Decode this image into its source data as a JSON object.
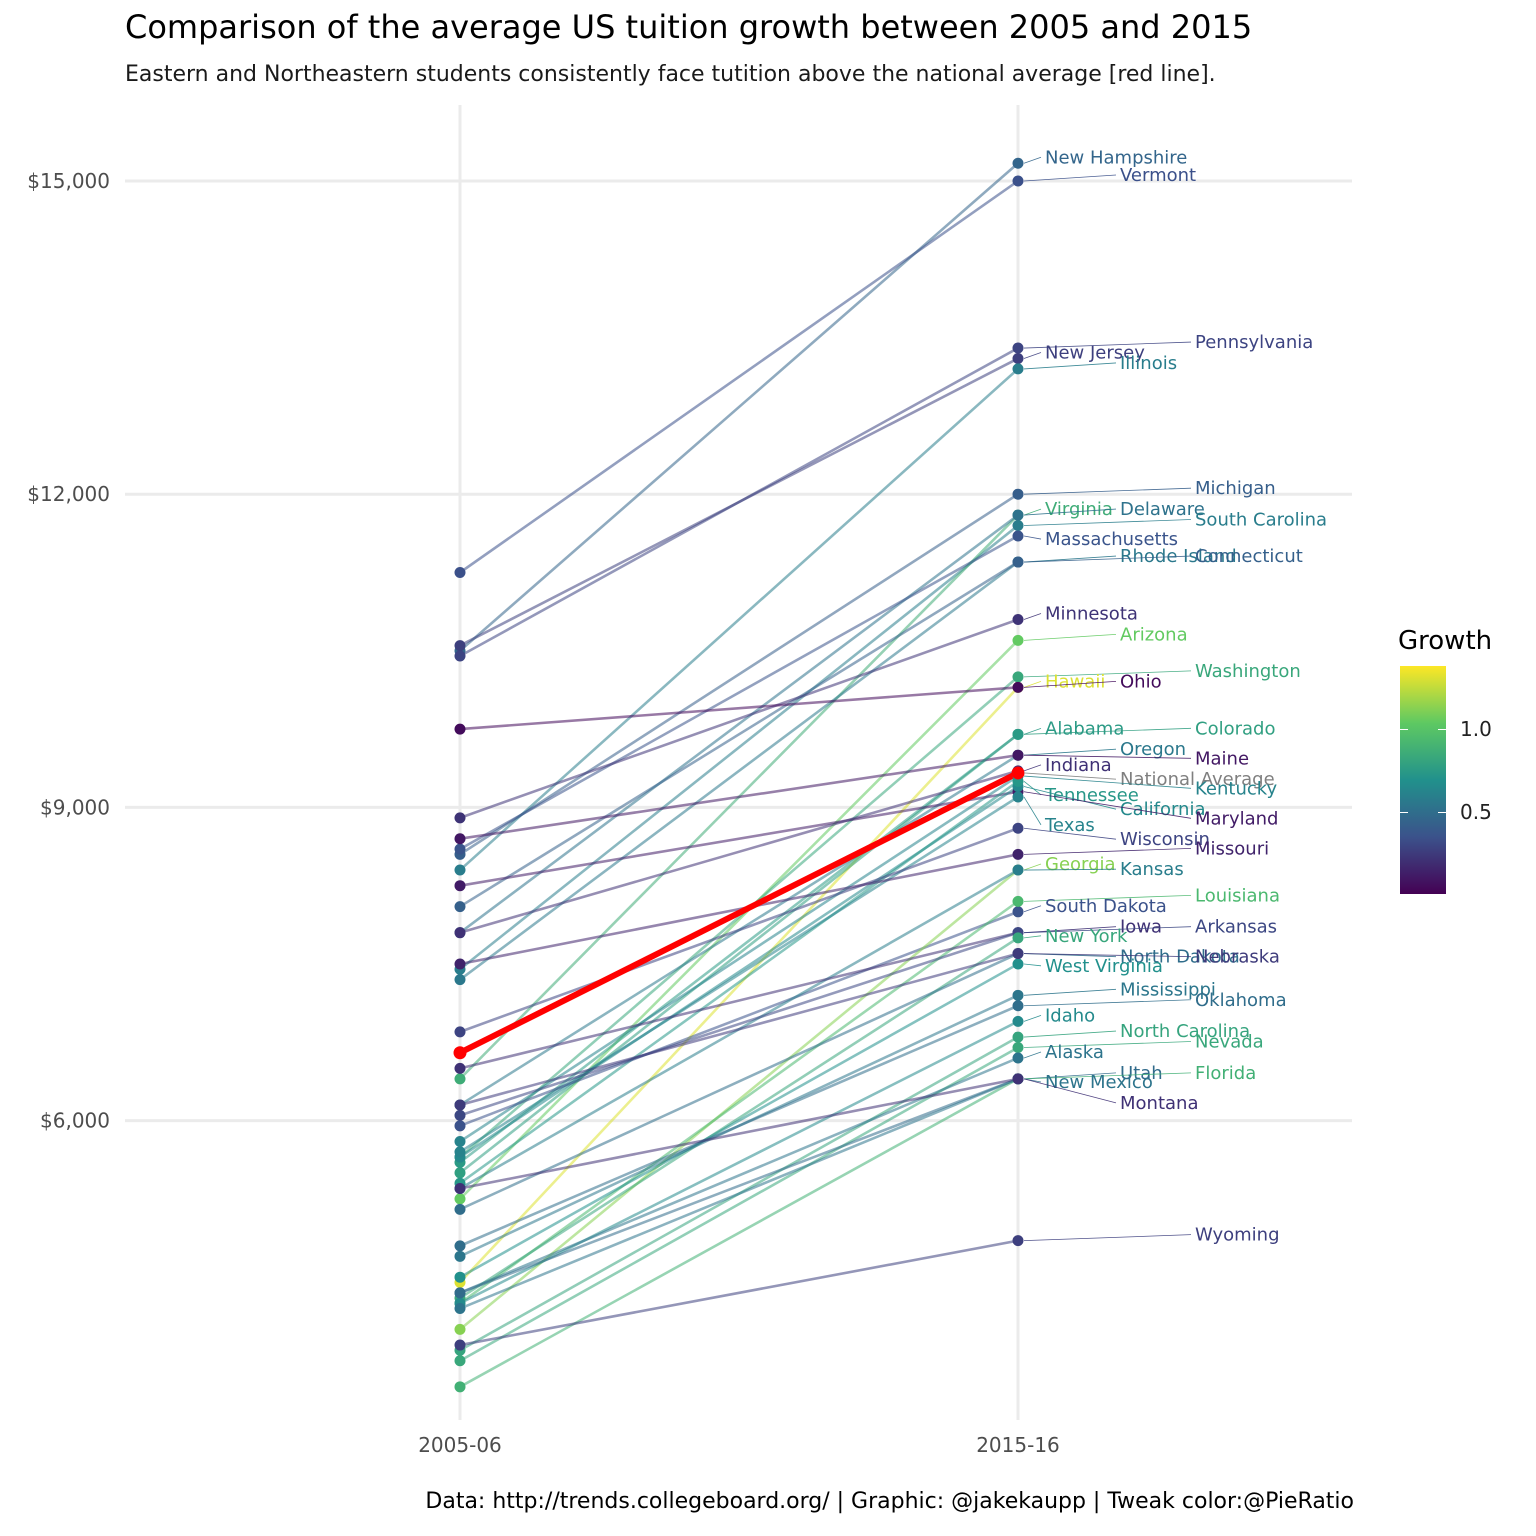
{
  "title": "Comparison of the average US tuition growth between 2005 and 2015",
  "subtitle": "Eastern and Northeastern students consistently face tutition above the national average [red line].",
  "caption": "Data: http://trends.collegeboard.org/ | Graphic: @jakekaupp | Tweak color:@PieRatio",
  "legend": {
    "title": "Growth",
    "ticks": [
      "0.5",
      "1.0"
    ]
  },
  "chart_data": {
    "type": "line",
    "x": [
      "2005-06",
      "2015-16"
    ],
    "y_ticks": [
      "$6,000",
      "$9,000",
      "$12,000",
      "$15,000"
    ],
    "ylim": [
      3500,
      15700
    ],
    "grid": true,
    "colorscale": "viridis",
    "highlight": {
      "name": "National Average",
      "color": "#ff0000",
      "values": [
        6650,
        9330
      ]
    },
    "series": [
      {
        "name": "New Hampshire",
        "values": [
          10500,
          15170
        ],
        "growth": 0.44
      },
      {
        "name": "Vermont",
        "values": [
          11250,
          15000
        ],
        "growth": 0.33
      },
      {
        "name": "Pennsylvania",
        "values": [
          10450,
          13400
        ],
        "growth": 0.28
      },
      {
        "name": "New Jersey",
        "values": [
          10550,
          13300
        ],
        "growth": 0.26
      },
      {
        "name": "Illinois",
        "values": [
          8400,
          13200
        ],
        "growth": 0.57
      },
      {
        "name": "Michigan",
        "values": [
          8550,
          12000
        ],
        "growth": 0.4
      },
      {
        "name": "South Carolina",
        "values": [
          7450,
          11700
        ],
        "growth": 0.57
      },
      {
        "name": "Virginia",
        "values": [
          6400,
          11800
        ],
        "growth": 0.84
      },
      {
        "name": "Delaware",
        "values": [
          7800,
          11800
        ],
        "growth": 0.51
      },
      {
        "name": "Massachusetts",
        "values": [
          8600,
          11600
        ],
        "growth": 0.35
      },
      {
        "name": "Rhode Island",
        "values": [
          7350,
          11350
        ],
        "growth": 0.54
      },
      {
        "name": "Connecticut",
        "values": [
          8050,
          11350
        ],
        "growth": 0.41
      },
      {
        "name": "Minnesota",
        "values": [
          8900,
          10800
        ],
        "growth": 0.21
      },
      {
        "name": "Arizona",
        "values": [
          5250,
          10600
        ],
        "growth": 1.02
      },
      {
        "name": "Hawaii",
        "values": [
          4450,
          10150
        ],
        "growth": 1.28
      },
      {
        "name": "Washington",
        "values": [
          5650,
          10250
        ],
        "growth": 0.81
      },
      {
        "name": "Oregon",
        "values": [
          6150,
          9500
        ],
        "growth": 0.54
      },
      {
        "name": "Ohio",
        "values": [
          9750,
          10150
        ],
        "growth": 0.04
      },
      {
        "name": "Colorado",
        "values": [
          5500,
          9700
        ],
        "growth": 0.76
      },
      {
        "name": "Maine",
        "values": [
          8700,
          9500
        ],
        "growth": 0.09
      },
      {
        "name": "Alabama",
        "values": [
          5600,
          9700
        ],
        "growth": 0.73
      },
      {
        "name": "Kentucky",
        "values": [
          5800,
          9300
        ],
        "growth": 0.6
      },
      {
        "name": "Maryland",
        "values": [
          8250,
          9150
        ],
        "growth": 0.11
      },
      {
        "name": "California",
        "values": [
          5650,
          9200
        ],
        "growth": 0.63
      },
      {
        "name": "Tennessee",
        "values": [
          5400,
          9250
        ],
        "growth": 0.71
      },
      {
        "name": "Indiana",
        "values": [
          7800,
          9350
        ],
        "growth": 0.2
      },
      {
        "name": "Texas",
        "values": [
          5700,
          9100
        ],
        "growth": 0.6
      },
      {
        "name": "Wisconsin",
        "values": [
          6850,
          8800
        ],
        "growth": 0.28
      },
      {
        "name": "South Dakota",
        "values": [
          5950,
          8000
        ],
        "growth": 0.34
      },
      {
        "name": "Georgia",
        "values": [
          4000,
          8400
        ],
        "growth": 1.1
      },
      {
        "name": "Missouri",
        "values": [
          7500,
          8550
        ],
        "growth": 0.14
      },
      {
        "name": "Kansas",
        "values": [
          5350,
          8400
        ],
        "growth": 0.57
      },
      {
        "name": "Louisiana",
        "values": [
          4250,
          8100
        ],
        "growth": 0.91
      },
      {
        "name": "Iowa",
        "values": [
          6500,
          7800
        ],
        "growth": 0.2
      },
      {
        "name": "Arkansas",
        "values": [
          6050,
          7800
        ],
        "growth": 0.29
      },
      {
        "name": "New York",
        "values": [
          4300,
          7750
        ],
        "growth": 0.8
      },
      {
        "name": "North Dakota",
        "values": [
          5150,
          7600
        ],
        "growth": 0.48
      },
      {
        "name": "West Virginia",
        "values": [
          4500,
          7500
        ],
        "growth": 0.67
      },
      {
        "name": "Nebraska",
        "values": [
          6150,
          7600
        ],
        "growth": 0.24
      },
      {
        "name": "Mississippi",
        "values": [
          4700,
          7200
        ],
        "growth": 0.53
      },
      {
        "name": "Oklahoma",
        "values": [
          4800,
          7100
        ],
        "growth": 0.48
      },
      {
        "name": "Idaho",
        "values": [
          4250,
          6950
        ],
        "growth": 0.64
      },
      {
        "name": "Nevada",
        "values": [
          3700,
          6700
        ],
        "growth": 0.81
      },
      {
        "name": "North Carolina",
        "values": [
          3800,
          6800
        ],
        "growth": 0.79
      },
      {
        "name": "Alaska",
        "values": [
          4350,
          6600
        ],
        "growth": 0.52
      },
      {
        "name": "Utah",
        "values": [
          4350,
          6400
        ],
        "growth": 0.47
      },
      {
        "name": "Florida",
        "values": [
          3450,
          6400
        ],
        "growth": 0.86
      },
      {
        "name": "New Mexico",
        "values": [
          4200,
          6400
        ],
        "growth": 0.52
      },
      {
        "name": "Montana",
        "values": [
          5350,
          6400
        ],
        "growth": 0.2
      },
      {
        "name": "Wyoming",
        "values": [
          3850,
          4850
        ],
        "growth": 0.26
      }
    ]
  }
}
